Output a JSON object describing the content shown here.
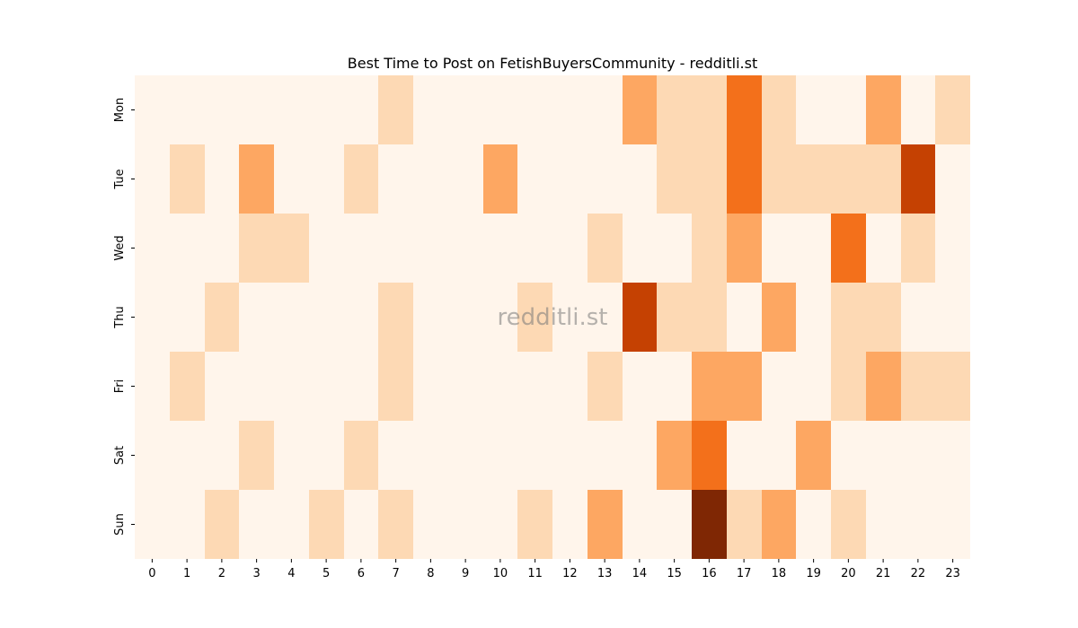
{
  "chart_data": {
    "type": "heatmap",
    "title": "Best Time to Post on FetishBuyersCommunity - redditli.st",
    "watermark": "redditli.st",
    "x_categories": [
      "0",
      "1",
      "2",
      "3",
      "4",
      "5",
      "6",
      "7",
      "8",
      "9",
      "10",
      "11",
      "12",
      "13",
      "14",
      "15",
      "16",
      "17",
      "18",
      "19",
      "20",
      "21",
      "22",
      "23"
    ],
    "y_categories": [
      "Mon",
      "Tue",
      "Wed",
      "Thu",
      "Fri",
      "Sat",
      "Sun"
    ],
    "values": [
      [
        0,
        0,
        0,
        0,
        0,
        0,
        0,
        1,
        0,
        0,
        0,
        0,
        0,
        0,
        2,
        1,
        1,
        3,
        1,
        0,
        0,
        2,
        0,
        1
      ],
      [
        0,
        1,
        0,
        2,
        0,
        0,
        1,
        0,
        0,
        0,
        2,
        0,
        0,
        0,
        0,
        1,
        1,
        3,
        1,
        1,
        1,
        1,
        4,
        0
      ],
      [
        0,
        0,
        0,
        1,
        1,
        0,
        0,
        0,
        0,
        0,
        0,
        0,
        0,
        1,
        0,
        0,
        1,
        2,
        0,
        0,
        3,
        0,
        1,
        0
      ],
      [
        0,
        0,
        1,
        0,
        0,
        0,
        0,
        1,
        0,
        0,
        0,
        1,
        0,
        0,
        4,
        1,
        1,
        0,
        2,
        0,
        1,
        1,
        0,
        0
      ],
      [
        0,
        1,
        0,
        0,
        0,
        0,
        0,
        1,
        0,
        0,
        0,
        0,
        0,
        1,
        0,
        0,
        2,
        2,
        0,
        0,
        1,
        2,
        1,
        1
      ],
      [
        0,
        0,
        0,
        1,
        0,
        0,
        1,
        0,
        0,
        0,
        0,
        0,
        0,
        0,
        0,
        2,
        3,
        0,
        0,
        2,
        0,
        0,
        0,
        0
      ],
      [
        0,
        0,
        1,
        0,
        0,
        1,
        0,
        1,
        0,
        0,
        0,
        1,
        0,
        2,
        0,
        0,
        5,
        1,
        2,
        0,
        1,
        0,
        0,
        0
      ]
    ],
    "colorscale": [
      "#fff5eb",
      "#fdd9b4",
      "#fda762",
      "#f3701b",
      "#c54102",
      "#7f2704"
    ]
  }
}
